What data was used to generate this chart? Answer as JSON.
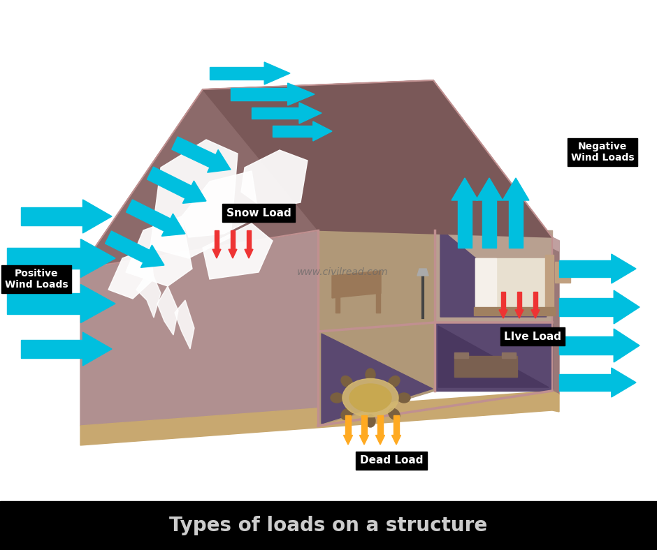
{
  "title": "Types of loads on a structure",
  "title_fontsize": 20,
  "title_color": "#cccccc",
  "title_bg": "#000000",
  "background_color": "#ffffff",
  "cyan_color": "#00BFDF",
  "label_bg": "#000000",
  "label_fg": "#ffffff",
  "watermark": "www.civilread.com",
  "labels": {
    "positive_wind": "Positive\nWind Loads",
    "negative_wind": "Negative\nWind Loads",
    "snow_load": "Snow Load",
    "live_load": "LIve Load",
    "dead_load": "Dead Load"
  },
  "roof_left_color": "#8c6a6a",
  "roof_right_color": "#7a5858",
  "wall_front_color": "#b09090",
  "wall_right_color": "#9a7878",
  "wall_inner_color": "#a08878",
  "interior_tan": "#b09878",
  "interior_purple": "#5a4870",
  "interior_dark_purple": "#4a3860",
  "floor_color": "#c8a870",
  "divider_color": "#c09090",
  "snow_color": "#ffffff",
  "red_arrow_color": "#ee3333",
  "orange_arrow_color": "#ffaa22"
}
